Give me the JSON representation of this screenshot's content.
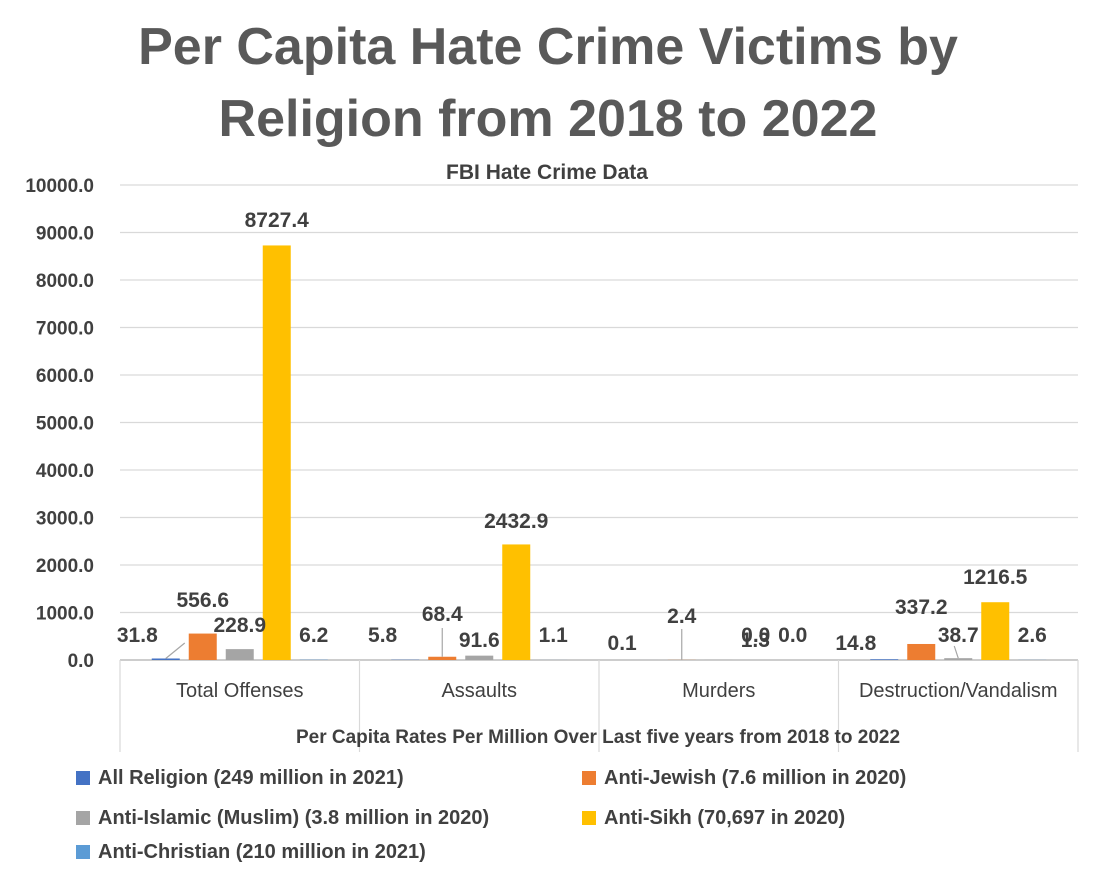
{
  "chart_data": {
    "type": "bar",
    "title_line1": "Per Capita Hate Crime Victims by",
    "title_line2": "Religion from 2018 to 2022",
    "subtitle": "FBI Hate Crime Data",
    "xlabel": "Per Capita Rates Per Million Over Last five years from 2018 to 2022",
    "ylabel": "",
    "ylim": [
      0,
      10000
    ],
    "ytick_step": 1000,
    "ytick_labels": [
      "0.0",
      "1000.0",
      "2000.0",
      "3000.0",
      "4000.0",
      "5000.0",
      "6000.0",
      "7000.0",
      "8000.0",
      "9000.0",
      "10000.0"
    ],
    "grid": true,
    "legend_position": "bottom",
    "categories": [
      "Total Offenses",
      "Assaults",
      "Murders",
      "Destruction/Vandalism"
    ],
    "series": [
      {
        "name": "All Religion (249 million in 2021)",
        "color": "#4472c4",
        "values": [
          31.8,
          5.8,
          0.1,
          14.8
        ],
        "labels": [
          "31.8",
          "5.8",
          "0.1",
          "14.8"
        ]
      },
      {
        "name": "Anti-Jewish (7.6 million in 2020)",
        "color": "#ed7d31",
        "values": [
          556.6,
          68.4,
          2.4,
          337.2
        ],
        "labels": [
          "556.6",
          "68.4",
          "2.4",
          "337.2"
        ]
      },
      {
        "name": "Anti-Islamic (Muslim) (3.8 million in 2020)",
        "color": "#a5a5a5",
        "values": [
          228.9,
          91.6,
          1.3,
          38.7
        ],
        "labels": [
          "228.9",
          "91.6",
          "1.3",
          "38.7"
        ]
      },
      {
        "name": "Anti-Sikh (70,697 in 2020)",
        "color": "#ffc000",
        "values": [
          8727.4,
          2432.9,
          0.0,
          1216.5
        ],
        "labels": [
          "8727.4",
          "2432.9",
          "0.0",
          "1216.5"
        ]
      },
      {
        "name": "Anti-Christian (210 million in 2021)",
        "color": "#5b9bd5",
        "values": [
          6.2,
          1.1,
          0.0,
          2.6
        ],
        "labels": [
          "6.2",
          "1.1",
          "0.0",
          "2.6"
        ]
      }
    ]
  }
}
